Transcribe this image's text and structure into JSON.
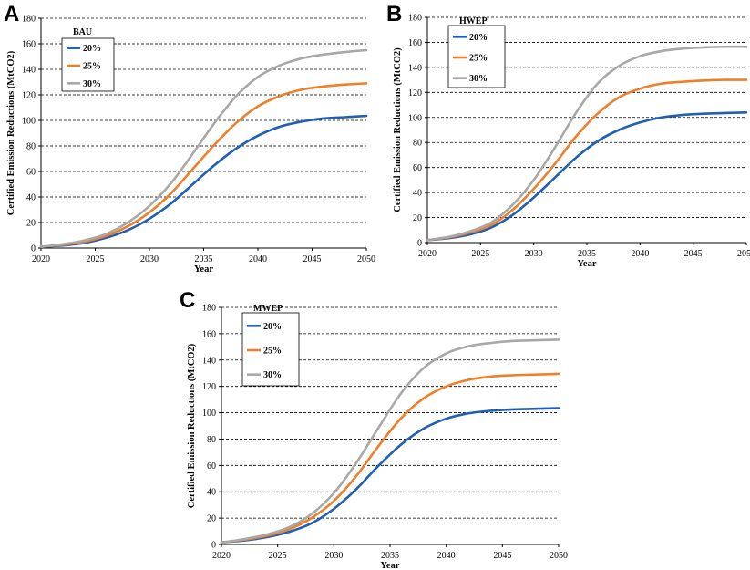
{
  "panels": [
    {
      "letter": "A"
    },
    {
      "letter": "B"
    },
    {
      "letter": "C"
    }
  ],
  "chart_data": [
    {
      "type": "line",
      "panel": "A",
      "legend_title": "BAU",
      "xlabel": "Year",
      "ylabel": "Certified Emission Reductions (MtCO2)",
      "xlim": [
        2020,
        2050
      ],
      "ylim": [
        0,
        180
      ],
      "xticks": [
        2020,
        2025,
        2030,
        2035,
        2040,
        2045,
        2050
      ],
      "yticks": [
        0,
        20,
        40,
        60,
        80,
        100,
        120,
        140,
        160,
        180
      ],
      "grid": true,
      "legend_position": "top-left",
      "x": [
        2020,
        2022,
        2024,
        2026,
        2028,
        2030,
        2032,
        2034,
        2036,
        2038,
        2040,
        2042,
        2044,
        2046,
        2048,
        2050
      ],
      "series": [
        {
          "name": "20%",
          "color": "#1f5fb4",
          "values": [
            1,
            2,
            4,
            8,
            14,
            23,
            35,
            50,
            65,
            78,
            88,
            95,
            99,
            101.5,
            102.5,
            103.5
          ]
        },
        {
          "name": "25%",
          "color": "#f07f2a",
          "values": [
            1,
            2.5,
            5,
            9.5,
            17,
            28,
            43,
            62,
            81,
            98,
            111,
            119,
            124,
            126.5,
            128,
            129
          ]
        },
        {
          "name": "30%",
          "color": "#a8a8a8",
          "values": [
            1,
            3,
            6,
            11,
            20,
            33,
            51,
            74,
            98,
            119,
            134,
            143,
            148.5,
            151.5,
            153.5,
            155
          ]
        }
      ]
    },
    {
      "type": "line",
      "panel": "B",
      "legend_title": "HWEP",
      "xlabel": "Year",
      "ylabel": "Certified Emission Reductions (MtCO2)",
      "xlim": [
        2020,
        2050
      ],
      "ylim": [
        0,
        180
      ],
      "xticks": [
        2020,
        2025,
        2030,
        2035,
        2040,
        2045,
        2050
      ],
      "yticks": [
        0,
        20,
        40,
        60,
        80,
        100,
        120,
        140,
        160,
        180
      ],
      "grid": true,
      "legend_position": "top-left",
      "x": [
        2020,
        2022,
        2024,
        2026,
        2028,
        2030,
        2032,
        2034,
        2036,
        2038,
        2040,
        2042,
        2044,
        2046,
        2048,
        2050
      ],
      "series": [
        {
          "name": "20%",
          "color": "#1f5fb4",
          "values": [
            2,
            3.5,
            6.5,
            12,
            22,
            36,
            52,
            68,
            81,
            90,
            96,
            100,
            102,
            103,
            103.5,
            104
          ]
        },
        {
          "name": "25%",
          "color": "#f07f2a",
          "values": [
            2,
            4,
            8,
            14,
            26,
            43,
            63,
            85,
            103,
            116,
            123,
            127,
            128.5,
            129.5,
            130,
            130
          ]
        },
        {
          "name": "30%",
          "color": "#a8a8a8",
          "values": [
            2,
            4.5,
            9,
            16,
            30,
            50,
            76,
            104,
            127,
            141,
            149,
            153,
            155,
            156,
            156.5,
            156.5
          ]
        }
      ]
    },
    {
      "type": "line",
      "panel": "C",
      "legend_title": "MWEP",
      "xlabel": "Year",
      "ylabel": "Certified Emission Reductions (MtCO2)",
      "xlim": [
        2020,
        2050
      ],
      "ylim": [
        0,
        180
      ],
      "xticks": [
        2020,
        2025,
        2030,
        2035,
        2040,
        2045,
        2050
      ],
      "yticks": [
        0,
        20,
        40,
        60,
        80,
        100,
        120,
        140,
        160,
        180
      ],
      "grid": true,
      "legend_position": "top-left",
      "x": [
        2020,
        2022,
        2024,
        2026,
        2028,
        2030,
        2032,
        2034,
        2036,
        2038,
        2040,
        2042,
        2044,
        2046,
        2048,
        2050
      ],
      "series": [
        {
          "name": "20%",
          "color": "#1f5fb4",
          "values": [
            1.5,
            3,
            5.5,
            9.5,
            16,
            27,
            42,
            60,
            76,
            88,
            95.5,
            99.5,
            101.5,
            102.5,
            103,
            103.5
          ]
        },
        {
          "name": "25%",
          "color": "#f07f2a",
          "values": [
            1.5,
            3.5,
            6.5,
            11.5,
            20,
            33,
            52,
            75,
            96,
            111,
            120,
            125,
            127.5,
            128.5,
            129,
            129.5
          ]
        },
        {
          "name": "30%",
          "color": "#a8a8a8",
          "values": [
            1.5,
            4,
            7.5,
            13,
            23,
            39,
            62,
            89,
            115,
            134,
            145,
            150.5,
            153,
            154.5,
            155,
            155.5
          ]
        }
      ]
    }
  ]
}
